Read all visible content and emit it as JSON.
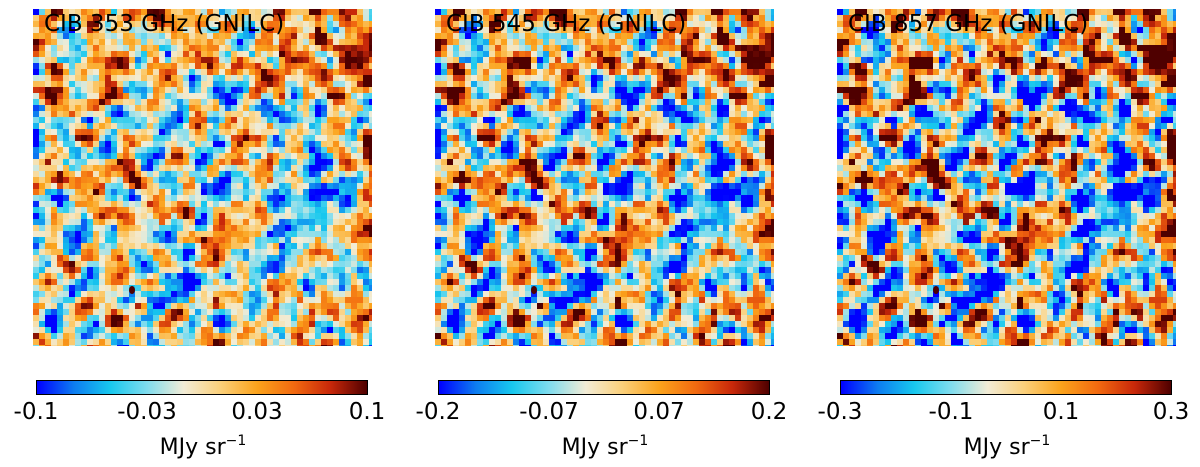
{
  "chart_data": [
    {
      "type": "heatmap",
      "title": "CIB 353 GHz (GNILC)",
      "colorbar": {
        "range": [
          -0.1,
          0.1
        ],
        "ticks": [
          -0.1,
          -0.03,
          0.03,
          0.1
        ],
        "tick_labels": [
          "-0.1",
          "-0.03",
          "0.03",
          "0.1"
        ],
        "label_main": "MJy sr",
        "label_exp": "−1"
      }
    },
    {
      "type": "heatmap",
      "title": "CIB 545 GHz (GNILC)",
      "colorbar": {
        "range": [
          -0.2,
          0.2
        ],
        "ticks": [
          -0.2,
          -0.07,
          0.07,
          0.2
        ],
        "tick_labels": [
          "-0.2",
          "-0.07",
          "0.07",
          "0.2"
        ],
        "label_main": "MJy sr",
        "label_exp": "−1"
      }
    },
    {
      "type": "heatmap",
      "title": "CIB 857 GHz (GNILC)",
      "colorbar": {
        "range": [
          -0.3,
          0.3
        ],
        "ticks": [
          -0.3,
          -0.1,
          0.1,
          0.3
        ],
        "tick_labels": [
          "-0.3",
          "-0.1",
          "0.1",
          "0.3"
        ],
        "label_main": "MJy sr",
        "label_exp": "−1"
      }
    }
  ],
  "colormap": [
    "#0000ff",
    "#0d7cf0",
    "#18c8ee",
    "#7fdcee",
    "#f2ecd6",
    "#fbd07a",
    "#fba31c",
    "#f26a10",
    "#c8280a",
    "#4f0000"
  ]
}
